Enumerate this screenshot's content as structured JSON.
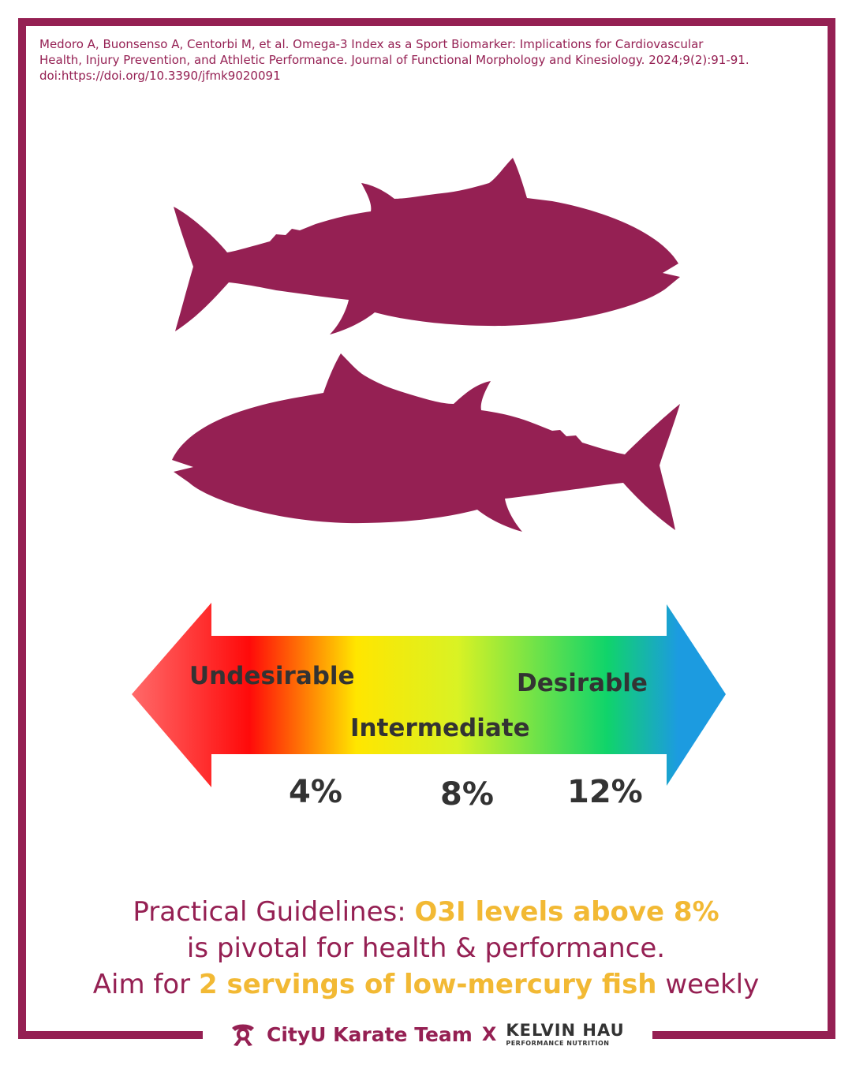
{
  "citation": {
    "line1": "Medoro A, Buonsenso A, Centorbi M, et al. Omega-3 Index as a Sport Biomarker: Implications for Cardiovascular",
    "line2": "Health, Injury Prevention, and Athletic Performance. Journal of Functional Morphology and Kinesiology. 2024;9(2):91-91.",
    "line3": "doi:https://doi.org/10.3390/jfmk9020091"
  },
  "scale": {
    "zones": {
      "low": "Undesirable",
      "mid": "Intermediate",
      "high": "Desirable"
    },
    "thresholds": [
      "4%",
      "8%",
      "12%"
    ],
    "colors": [
      "#ff6b6b",
      "#ff0a0a",
      "#ffe600",
      "#d9f224",
      "#10d46a",
      "#1c9be0"
    ]
  },
  "guidelines": {
    "l1_pre": "Practical Guidelines: ",
    "l1_hl": "O3I levels above 8%",
    "l2": "is pivotal for health & performance.",
    "l3_pre": "Aim for ",
    "l3_hl": "2 servings of low-mercury fish",
    "l3_post": " weekly"
  },
  "footer": {
    "team": "CityU Karate Team",
    "cross": "X",
    "partner_name": "KELVIN HAU",
    "partner_sub": "PERFORMANCE NUTRITION"
  },
  "colors": {
    "brand": "#952053",
    "highlight": "#f2b934",
    "text_dark": "#333333"
  }
}
